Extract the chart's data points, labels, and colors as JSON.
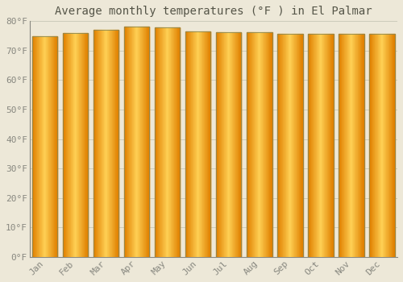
{
  "title": "Average monthly temperatures (°F ) in El Palmar",
  "months": [
    "Jan",
    "Feb",
    "Mar",
    "Apr",
    "May",
    "Jun",
    "Jul",
    "Aug",
    "Sep",
    "Oct",
    "Nov",
    "Dec"
  ],
  "values": [
    75.0,
    76.1,
    77.2,
    78.1,
    77.9,
    76.6,
    76.3,
    76.3,
    75.7,
    75.6,
    75.6,
    75.6
  ],
  "bar_color_main": "#FFAA00",
  "bar_color_light": "#FFD055",
  "bar_color_dark": "#E08000",
  "bar_edge_color": "#888855",
  "background_color": "#EDE8D8",
  "plot_bg_color": "#EDE8D8",
  "grid_color": "#CCCCBB",
  "ylim": [
    0,
    80
  ],
  "yticks": [
    0,
    10,
    20,
    30,
    40,
    50,
    60,
    70,
    80
  ],
  "ytick_labels": [
    "0°F",
    "10°F",
    "20°F",
    "30°F",
    "40°F",
    "50°F",
    "60°F",
    "70°F",
    "80°F"
  ],
  "title_fontsize": 10,
  "tick_fontsize": 8,
  "font_color": "#888880",
  "title_color": "#555548"
}
